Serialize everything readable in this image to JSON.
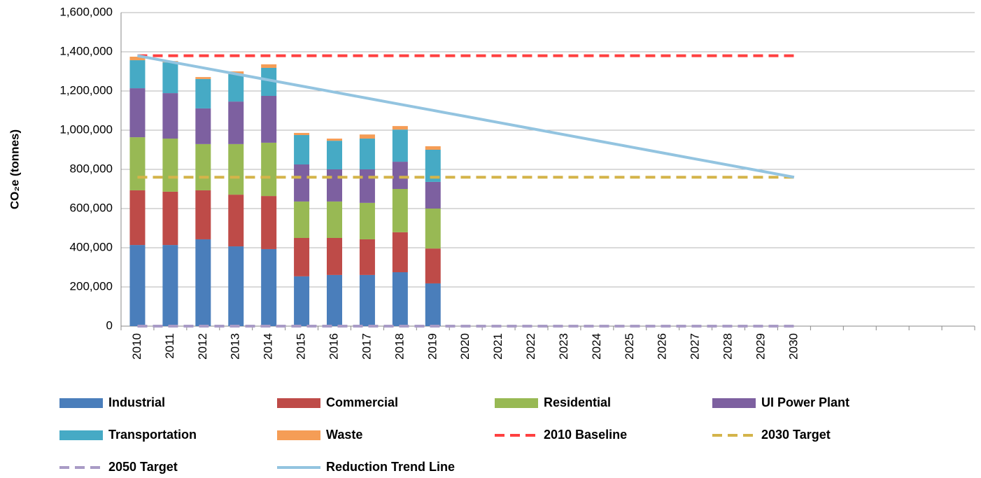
{
  "chart_data": {
    "type": "bar",
    "stacked": true,
    "y_label": "CO₂e (tonnes)",
    "categories": [
      "2010",
      "2011",
      "2012",
      "2013",
      "2014",
      "2015",
      "2016",
      "2017",
      "2018",
      "2019",
      "2020",
      "2021",
      "2022",
      "2023",
      "2024",
      "2025",
      "2026",
      "2027",
      "2028",
      "2029",
      "2030",
      null,
      null,
      null,
      null,
      null
    ],
    "ylim": [
      0,
      1600000
    ],
    "yticks": [
      0,
      {
        "value": 200000,
        "label": "200,000"
      },
      {
        "value": 400000,
        "label": "400,000"
      },
      {
        "value": 600000,
        "label": "600,000"
      },
      {
        "value": 800000,
        "label": "800,000"
      },
      {
        "value": 1000000,
        "label": "1,000,000"
      },
      {
        "value": 1200000,
        "label": "1,200,000"
      },
      {
        "value": 1400000,
        "label": "1,400,000"
      },
      {
        "value": 1600000,
        "label": "1,600,000"
      }
    ],
    "grid": true,
    "legend": "bottom",
    "series": [
      {
        "name": "Industrial",
        "color": "#4a7ebb",
        "type": "bar",
        "values": [
          414000,
          414000,
          443000,
          407000,
          393000,
          254000,
          261000,
          261000,
          275000,
          218000,
          null,
          null,
          null,
          null,
          null,
          null,
          null,
          null,
          null,
          null,
          null,
          null,
          null,
          null,
          null,
          null
        ]
      },
      {
        "name": "Commercial",
        "color": "#be4b48",
        "type": "bar",
        "values": [
          279000,
          272000,
          250000,
          264000,
          271000,
          196000,
          189000,
          182000,
          204000,
          178000,
          null,
          null,
          null,
          null,
          null,
          null,
          null,
          null,
          null,
          null,
          null,
          null,
          null,
          null,
          null,
          null
        ]
      },
      {
        "name": "Residential",
        "color": "#98b954",
        "type": "bar",
        "values": [
          271000,
          271000,
          236000,
          258000,
          272000,
          186000,
          186000,
          186000,
          221000,
          204000,
          null,
          null,
          null,
          null,
          null,
          null,
          null,
          null,
          null,
          null,
          null,
          null,
          null,
          null,
          null,
          null
        ]
      },
      {
        "name": "UI Power Plant",
        "color": "#7d60a0",
        "type": "bar",
        "values": [
          250000,
          232000,
          182000,
          217000,
          239000,
          189000,
          164000,
          171000,
          139000,
          136000,
          null,
          null,
          null,
          null,
          null,
          null,
          null,
          null,
          null,
          null,
          null,
          null,
          null,
          null,
          null,
          null
        ]
      },
      {
        "name": "Transportation",
        "color": "#46aac5",
        "type": "bar",
        "values": [
          143000,
          157000,
          150000,
          140000,
          143000,
          150000,
          146000,
          157000,
          164000,
          164000,
          null,
          null,
          null,
          null,
          null,
          null,
          null,
          null,
          null,
          null,
          null,
          null,
          null,
          null,
          null,
          null
        ]
      },
      {
        "name": "Waste",
        "color": "#f59d56",
        "type": "bar",
        "values": [
          18000,
          7000,
          10000,
          14000,
          18000,
          11000,
          11000,
          21000,
          18000,
          18000,
          null,
          null,
          null,
          null,
          null,
          null,
          null,
          null,
          null,
          null,
          null,
          null,
          null,
          null,
          null,
          null
        ]
      },
      {
        "name": "2010 Baseline",
        "color": "#ff4040",
        "type": "line",
        "dashed": true,
        "values": [
          1380000,
          1380000,
          1380000,
          1380000,
          1380000,
          1380000,
          1380000,
          1380000,
          1380000,
          1380000,
          1380000,
          1380000,
          1380000,
          1380000,
          1380000,
          1380000,
          1380000,
          1380000,
          1380000,
          1380000,
          1380000,
          null,
          null,
          null,
          null,
          null
        ]
      },
      {
        "name": "2030 Target",
        "color": "#d4b44a",
        "type": "line",
        "dashed": true,
        "values": [
          760000,
          760000,
          760000,
          760000,
          760000,
          760000,
          760000,
          760000,
          760000,
          760000,
          760000,
          760000,
          760000,
          760000,
          760000,
          760000,
          760000,
          760000,
          760000,
          760000,
          760000,
          null,
          null,
          null,
          null,
          null
        ]
      },
      {
        "name": "2050 Target",
        "color": "#a99bc6",
        "type": "line",
        "dashed": true,
        "values": [
          0,
          0,
          0,
          0,
          0,
          0,
          0,
          0,
          0,
          0,
          0,
          0,
          0,
          0,
          0,
          0,
          0,
          0,
          0,
          0,
          0,
          null,
          null,
          null,
          null,
          null
        ]
      },
      {
        "name": "Reduction Trend Line",
        "color": "#93c4e0",
        "type": "line",
        "dashed": false,
        "values": [
          1380000,
          1349000,
          1318000,
          1287000,
          1256000,
          1225000,
          1194000,
          1163000,
          1132000,
          1101000,
          1070000,
          1039000,
          1008000,
          977000,
          946000,
          915000,
          884000,
          853000,
          822000,
          791000,
          760000,
          null,
          null,
          null,
          null,
          null
        ]
      }
    ]
  }
}
